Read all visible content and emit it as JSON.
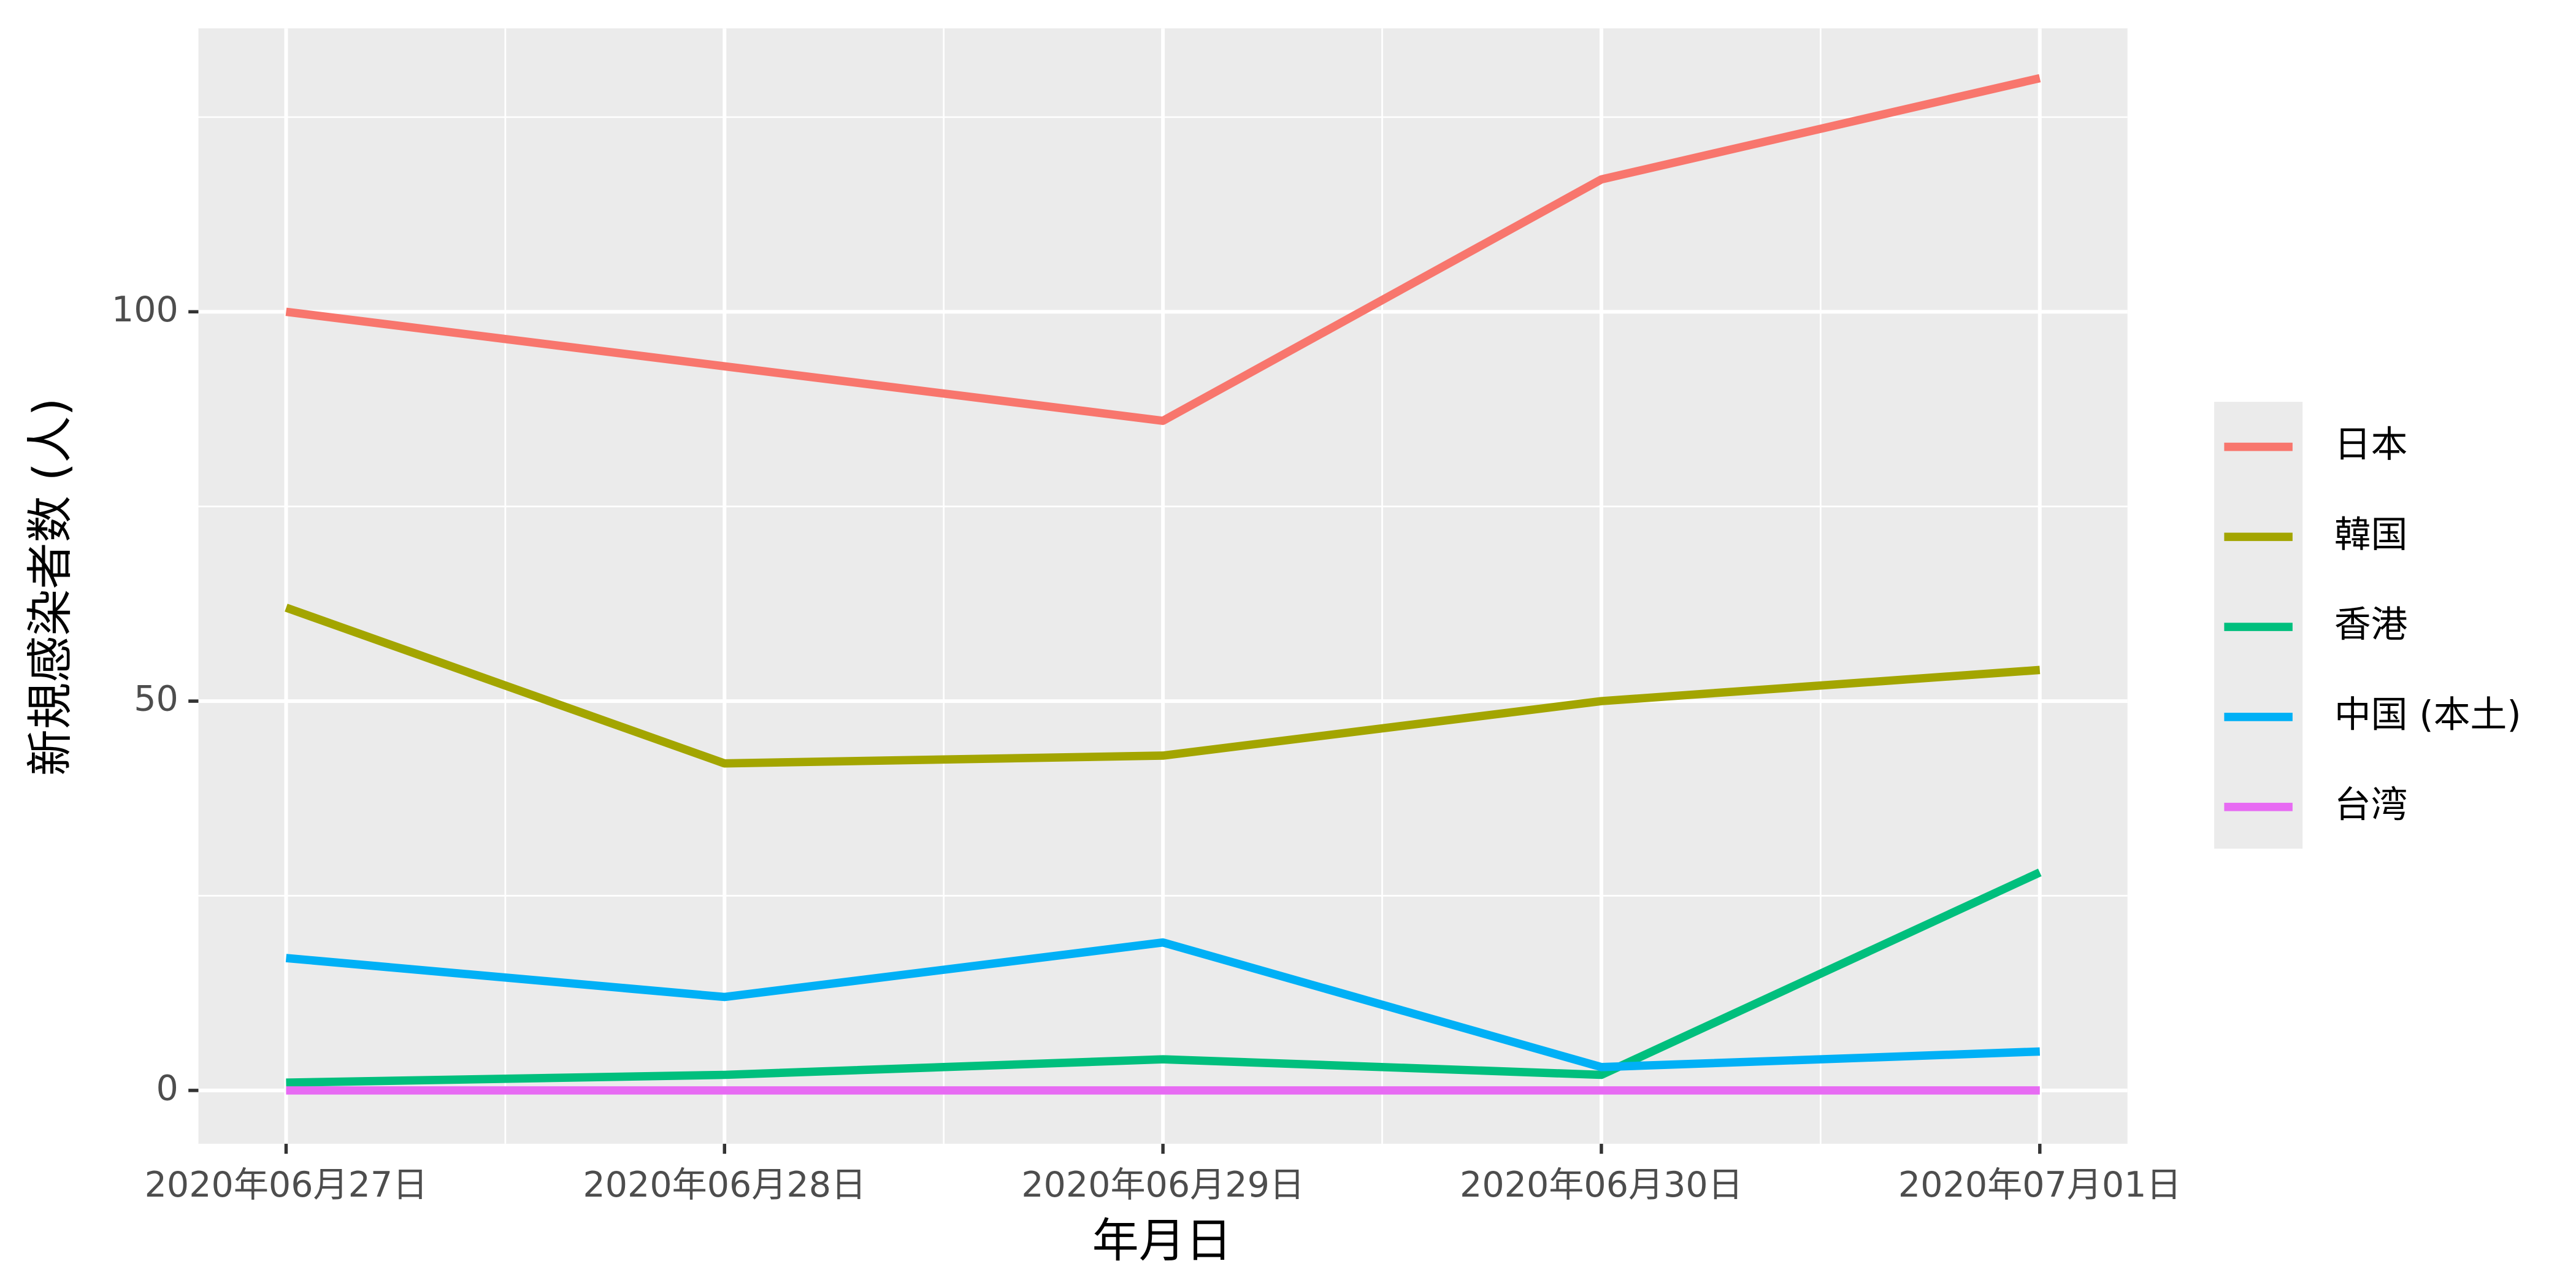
{
  "chart_data": {
    "type": "line",
    "x_label": "年月日",
    "y_label": "新規感染者数 (人)",
    "categories": [
      "2020年06月27日",
      "2020年06月28日",
      "2020年06月29日",
      "2020年06月30日",
      "2020年07月01日"
    ],
    "series": [
      {
        "name": "日本",
        "color": "#F8766D",
        "values": [
          100,
          93,
          86,
          117,
          130
        ]
      },
      {
        "name": "韓国",
        "color": "#A3A500",
        "values": [
          62,
          42,
          43,
          50,
          54
        ]
      },
      {
        "name": "香港",
        "color": "#00BF7D",
        "values": [
          1,
          2,
          4,
          2,
          28
        ]
      },
      {
        "name": "中国 (本土)",
        "color": "#00B0F6",
        "values": [
          17,
          12,
          19,
          3,
          5
        ]
      },
      {
        "name": "台湾",
        "color": "#E76BF3",
        "values": [
          0,
          0,
          0,
          0,
          0
        ]
      }
    ],
    "ylim": [
      -6.85,
      136.4
    ],
    "yticks": [
      0,
      50,
      100
    ],
    "grid": true,
    "legend": "right"
  }
}
